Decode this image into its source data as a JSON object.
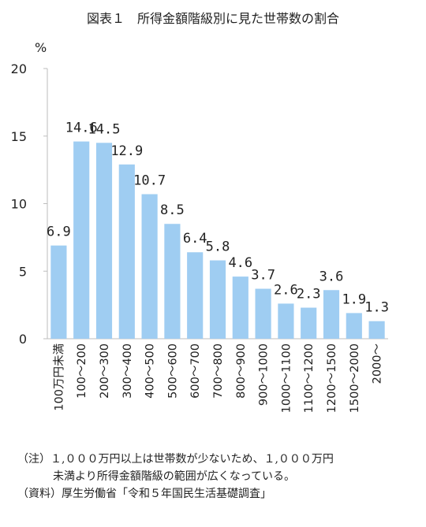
{
  "title": "図表１　所得金額階級別に見た世帯数の割合",
  "notes": [
    "（注）１,０００万円以上は世帯数が少ないため、１,０００万円",
    "未満より所得金額階級の範囲が広くなっている。",
    "（資料）厚生労働省「令和５年国民生活基礎調査」"
  ],
  "chart_data": {
    "type": "bar",
    "title": "図表１　所得金額階級別に見た世帯数の割合",
    "ylabel": "%",
    "xlabel": "",
    "ylim": [
      0,
      20
    ],
    "yticks": [
      0,
      5,
      10,
      15,
      20
    ],
    "grid": false,
    "bar_color": "#9fcdf2",
    "categories": [
      "100万円未満",
      "100～200",
      "200～300",
      "300～400",
      "400～500",
      "500～600",
      "600～700",
      "700～800",
      "800～900",
      "900～1000",
      "1000～1100",
      "1100～1200",
      "1200～1500",
      "1500～2000",
      "2000～"
    ],
    "values": [
      6.9,
      14.6,
      14.5,
      12.9,
      10.7,
      8.5,
      6.4,
      5.8,
      4.6,
      3.7,
      2.6,
      2.3,
      3.6,
      1.9,
      1.3
    ],
    "labels": [
      "6.9",
      "14.6",
      "14.5",
      "12.9",
      "10.7",
      "8.5",
      "6.4",
      "5.8",
      "4.6",
      "3.7",
      "2.6",
      "2.3",
      "3.6",
      "1.9",
      "1.3"
    ]
  }
}
